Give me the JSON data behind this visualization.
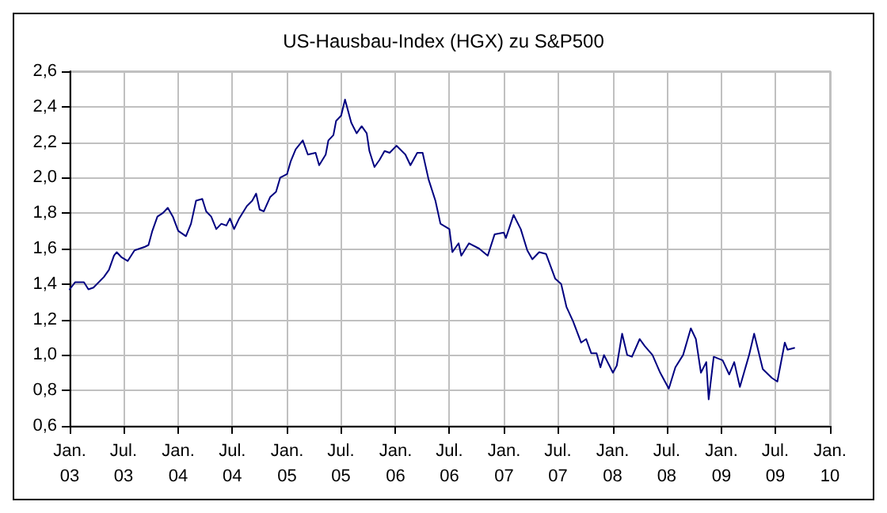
{
  "chart_data": {
    "type": "line",
    "title": "US-Hausbau-Index (HGX) zu S&P500",
    "x": [
      "2003-01-01",
      "2003-01-19",
      "2003-02-18",
      "2003-03-05",
      "2003-03-22",
      "2003-04-26",
      "2003-05-13",
      "2003-05-30",
      "2003-06-08",
      "2003-06-25",
      "2003-07-15",
      "2003-08-07",
      "2003-09-11",
      "2003-09-23",
      "2003-10-06",
      "2003-10-23",
      "2003-11-10",
      "2003-11-27",
      "2003-12-14",
      "2004-01-01",
      "2004-01-27",
      "2004-02-13",
      "2004-03-01",
      "2004-03-22",
      "2004-04-04",
      "2004-04-21",
      "2004-05-08",
      "2004-05-25",
      "2004-06-11",
      "2004-06-23",
      "2004-07-07",
      "2004-07-24",
      "2004-08-19",
      "2004-09-06",
      "2004-09-19",
      "2004-10-01",
      "2004-10-15",
      "2004-11-05",
      "2004-11-25",
      "2004-12-09",
      "2005-01-01",
      "2005-01-13",
      "2005-01-30",
      "2005-02-23",
      "2005-03-12",
      "2005-04-07",
      "2005-04-19",
      "2005-05-11",
      "2005-05-20",
      "2005-06-06",
      "2005-06-15",
      "2005-07-02",
      "2005-07-15",
      "2005-08-05",
      "2005-08-23",
      "2005-09-09",
      "2005-09-26",
      "2005-10-05",
      "2005-10-22",
      "2005-11-08",
      "2005-11-25",
      "2005-12-12",
      "2006-01-04",
      "2006-02-03",
      "2006-02-20",
      "2006-03-15",
      "2006-04-02",
      "2006-04-22",
      "2006-05-15",
      "2006-06-01",
      "2006-07-01",
      "2006-07-11",
      "2006-08-01",
      "2006-08-10",
      "2006-09-05",
      "2006-10-09",
      "2006-11-07",
      "2006-11-30",
      "2006-12-31",
      "2007-01-07",
      "2007-02-02",
      "2007-02-26",
      "2007-03-20",
      "2007-04-06",
      "2007-04-29",
      "2007-05-22",
      "2007-06-22",
      "2007-07-12",
      "2007-07-30",
      "2007-08-21",
      "2007-09-17",
      "2007-10-04",
      "2007-10-21",
      "2007-11-08",
      "2007-11-21",
      "2007-12-03",
      "2008-01-02",
      "2008-01-15",
      "2008-02-02",
      "2008-02-19",
      "2008-03-06",
      "2008-04-01",
      "2008-04-18",
      "2008-05-14",
      "2008-06-09",
      "2008-07-08",
      "2008-07-30",
      "2008-08-25",
      "2008-09-20",
      "2008-10-07",
      "2008-10-24",
      "2008-11-11",
      "2008-11-19",
      "2008-12-06",
      "2009-01-05",
      "2009-01-27",
      "2009-02-13",
      "2009-03-04",
      "2009-04-04",
      "2009-04-21",
      "2009-05-20",
      "2009-06-20",
      "2009-07-08",
      "2009-08-02",
      "2009-08-11",
      "2009-09-03"
    ],
    "series": [
      {
        "color": "#000080",
        "values": [
          1.37,
          1.41,
          1.41,
          1.37,
          1.38,
          1.44,
          1.48,
          1.56,
          1.58,
          1.55,
          1.53,
          1.59,
          1.61,
          1.62,
          1.7,
          1.78,
          1.8,
          1.83,
          1.78,
          1.7,
          1.67,
          1.74,
          1.87,
          1.88,
          1.81,
          1.78,
          1.71,
          1.74,
          1.73,
          1.77,
          1.71,
          1.77,
          1.84,
          1.87,
          1.91,
          1.82,
          1.81,
          1.89,
          1.92,
          2.0,
          2.02,
          2.09,
          2.16,
          2.21,
          2.13,
          2.14,
          2.07,
          2.13,
          2.21,
          2.24,
          2.32,
          2.35,
          2.44,
          2.31,
          2.25,
          2.29,
          2.25,
          2.15,
          2.06,
          2.1,
          2.15,
          2.14,
          2.18,
          2.13,
          2.07,
          2.14,
          2.14,
          1.99,
          1.87,
          1.74,
          1.71,
          1.58,
          1.63,
          1.56,
          1.63,
          1.6,
          1.56,
          1.68,
          1.69,
          1.66,
          1.79,
          1.71,
          1.59,
          1.54,
          1.58,
          1.57,
          1.43,
          1.4,
          1.27,
          1.19,
          1.07,
          1.09,
          1.01,
          1.01,
          0.93,
          1.0,
          0.9,
          0.94,
          1.12,
          1.0,
          0.99,
          1.09,
          1.05,
          1.0,
          0.9,
          0.81,
          0.93,
          1.0,
          1.15,
          1.09,
          0.9,
          0.96,
          0.75,
          0.99,
          0.97,
          0.89,
          0.96,
          0.82,
          1.0,
          1.12,
          0.92,
          0.87,
          0.85,
          1.07,
          1.03,
          1.04
        ]
      }
    ],
    "xlim": [
      "2003-01-01",
      "2010-01-01"
    ],
    "xticks": [
      {
        "value": "2003-01-01",
        "label": "Jan.\n03"
      },
      {
        "value": "2003-07-01",
        "label": "Jul.\n03"
      },
      {
        "value": "2004-01-01",
        "label": "Jan.\n04"
      },
      {
        "value": "2004-07-01",
        "label": "Jul.\n04"
      },
      {
        "value": "2005-01-01",
        "label": "Jan.\n05"
      },
      {
        "value": "2005-07-01",
        "label": "Jul.\n05"
      },
      {
        "value": "2006-01-01",
        "label": "Jan.\n06"
      },
      {
        "value": "2006-07-01",
        "label": "Jul.\n06"
      },
      {
        "value": "2007-01-01",
        "label": "Jan.\n07"
      },
      {
        "value": "2007-07-01",
        "label": "Jul.\n07"
      },
      {
        "value": "2008-01-01",
        "label": "Jan.\n08"
      },
      {
        "value": "2008-07-01",
        "label": "Jul.\n08"
      },
      {
        "value": "2009-01-01",
        "label": "Jan.\n09"
      },
      {
        "value": "2009-07-01",
        "label": "Jul.\n09"
      },
      {
        "value": "2010-01-01",
        "label": "Jan.\n10"
      }
    ],
    "ylim": [
      0.6,
      2.6
    ],
    "yticks": [
      {
        "value": 0.6,
        "label": "0,6"
      },
      {
        "value": 0.8,
        "label": "0,8"
      },
      {
        "value": 1.0,
        "label": "1,0"
      },
      {
        "value": 1.2,
        "label": "1,2"
      },
      {
        "value": 1.4,
        "label": "1,4"
      },
      {
        "value": 1.6,
        "label": "1,6"
      },
      {
        "value": 1.8,
        "label": "1,8"
      },
      {
        "value": 2.0,
        "label": "2,0"
      },
      {
        "value": 2.2,
        "label": "2,2"
      },
      {
        "value": 2.4,
        "label": "2,4"
      },
      {
        "value": 2.6,
        "label": "2,6"
      }
    ],
    "grid": true,
    "marker": "none",
    "line_style": "solid"
  }
}
